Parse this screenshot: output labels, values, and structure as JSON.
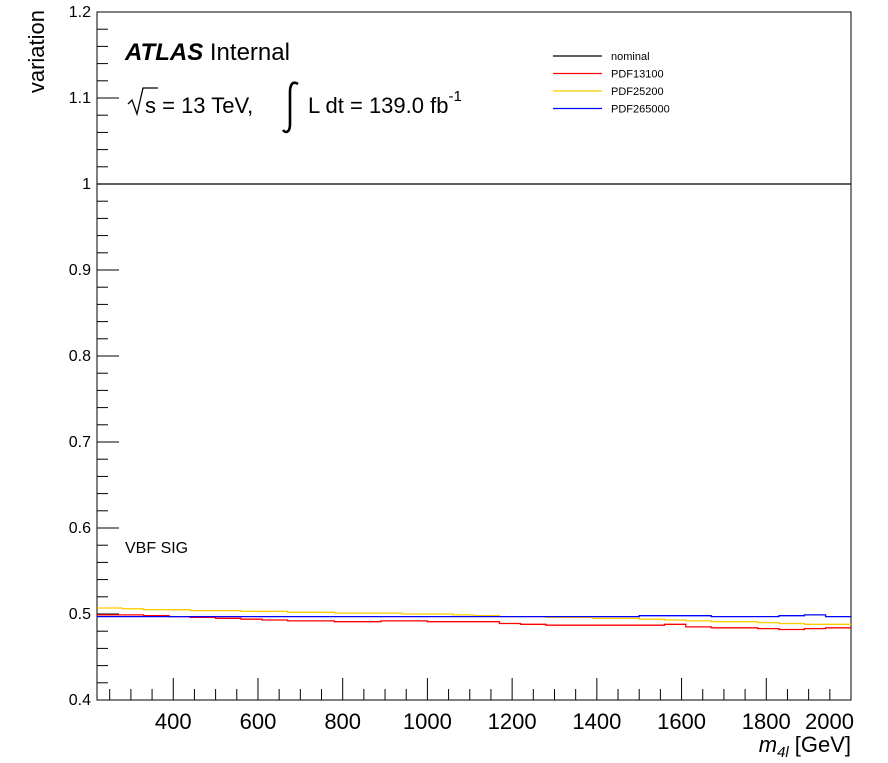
{
  "chart_data": {
    "type": "line",
    "title": "",
    "xlabel": "m",
    "xlabel_sub": "4l",
    "xlabel_unit": "[GeV]",
    "ylabel": "variation",
    "xlim": [
      220,
      2000
    ],
    "ylim": [
      0.4,
      1.2
    ],
    "x_ticks": [
      400,
      600,
      800,
      1000,
      1200,
      1400,
      1600,
      1800,
      2000
    ],
    "y_ticks": [
      0.4,
      0.5,
      0.6,
      0.7,
      0.8,
      0.9,
      1,
      1.1,
      1.2
    ],
    "y_tick_labels": [
      "0.4",
      "0.5",
      "0.6",
      "0.7",
      "0.8",
      "0.9",
      "1",
      "1.1",
      "1.2"
    ],
    "grid": false,
    "legend_position": "top-right",
    "bin_edges": [
      220,
      280,
      330,
      390,
      440,
      500,
      560,
      610,
      670,
      720,
      780,
      830,
      890,
      940,
      1000,
      1060,
      1110,
      1170,
      1220,
      1280,
      1330,
      1390,
      1450,
      1500,
      1560,
      1610,
      1670,
      1720,
      1780,
      1830,
      1890,
      1940,
      2000
    ],
    "series": [
      {
        "name": "nominal",
        "color": "#000000",
        "values": [
          1,
          1,
          1,
          1,
          1,
          1,
          1,
          1,
          1,
          1,
          1,
          1,
          1,
          1,
          1,
          1,
          1,
          1,
          1,
          1,
          1,
          1,
          1,
          1,
          1,
          1,
          1,
          1,
          1,
          1,
          1,
          1
        ]
      },
      {
        "name": "PDF13100",
        "color": "#ff0000",
        "values": [
          0.499,
          0.499,
          0.498,
          0.497,
          0.496,
          0.495,
          0.494,
          0.493,
          0.492,
          0.492,
          0.491,
          0.491,
          0.492,
          0.492,
          0.491,
          0.491,
          0.491,
          0.489,
          0.488,
          0.487,
          0.487,
          0.487,
          0.487,
          0.487,
          0.488,
          0.485,
          0.484,
          0.484,
          0.483,
          0.482,
          0.483,
          0.484
        ]
      },
      {
        "name": "PDF25200",
        "color": "#ffcc00",
        "values": [
          0.507,
          0.506,
          0.505,
          0.505,
          0.504,
          0.504,
          0.503,
          0.503,
          0.502,
          0.502,
          0.501,
          0.501,
          0.501,
          0.5,
          0.5,
          0.499,
          0.498,
          0.497,
          0.497,
          0.496,
          0.496,
          0.495,
          0.495,
          0.494,
          0.493,
          0.492,
          0.491,
          0.491,
          0.49,
          0.489,
          0.488,
          0.488
        ]
      },
      {
        "name": "PDF265000",
        "color": "#0000ff",
        "values": [
          0.497,
          0.497,
          0.497,
          0.497,
          0.497,
          0.497,
          0.497,
          0.497,
          0.497,
          0.497,
          0.497,
          0.497,
          0.497,
          0.497,
          0.497,
          0.497,
          0.497,
          0.497,
          0.497,
          0.497,
          0.497,
          0.497,
          0.497,
          0.498,
          0.498,
          0.498,
          0.497,
          0.497,
          0.497,
          0.498,
          0.499,
          0.497
        ]
      }
    ],
    "annotations": {
      "atlas_bold": "ATLAS",
      "atlas_status": "Internal",
      "energy_text": "s = 13 TeV,",
      "lumi_text": "L dt = 139.0 fb",
      "lumi_exponent": "-1",
      "region_label": "VBF SIG"
    }
  }
}
